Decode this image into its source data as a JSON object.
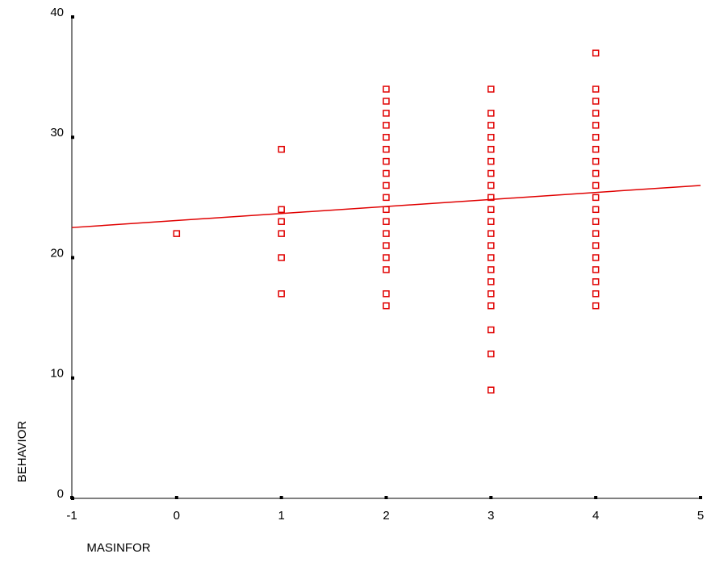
{
  "chart_data": {
    "type": "scatter",
    "xlabel": "MASINFOR",
    "ylabel": "BEHAVIOR",
    "xlim": [
      -1,
      5
    ],
    "ylim": [
      0,
      40
    ],
    "xticks": [
      -1,
      0,
      1,
      2,
      3,
      4,
      5
    ],
    "yticks": [
      0,
      10,
      20,
      30,
      40
    ],
    "series": [
      {
        "color": "#e00000",
        "x": [
          0,
          1,
          1,
          1,
          1,
          1,
          1,
          2,
          2,
          2,
          2,
          2,
          2,
          2,
          2,
          2,
          2,
          2,
          2,
          2,
          2,
          2,
          2,
          2,
          2,
          3,
          3,
          3,
          3,
          3,
          3,
          3,
          3,
          3,
          3,
          3,
          3,
          3,
          3,
          3,
          3,
          3,
          3,
          3,
          3,
          3,
          4,
          4,
          4,
          4,
          4,
          4,
          4,
          4,
          4,
          4,
          4,
          4,
          4,
          4,
          4,
          4,
          4,
          4,
          4,
          4
        ],
        "values": [
          22,
          29,
          24,
          23,
          22,
          20,
          17,
          34,
          33,
          32,
          31,
          30,
          29,
          28,
          27,
          26,
          25,
          24,
          23,
          22,
          21,
          20,
          19,
          17,
          16,
          34,
          32,
          31,
          30,
          29,
          28,
          27,
          26,
          25,
          24,
          23,
          22,
          21,
          20,
          19,
          18,
          17,
          16,
          14,
          12,
          9,
          37,
          34,
          33,
          32,
          31,
          30,
          29,
          28,
          27,
          26,
          25,
          24,
          23,
          22,
          21,
          20,
          19,
          18,
          17,
          16
        ]
      }
    ],
    "fit_line": {
      "color": "#e00000",
      "x": [
        -1,
        5
      ],
      "values": [
        22.5,
        26
      ]
    }
  }
}
